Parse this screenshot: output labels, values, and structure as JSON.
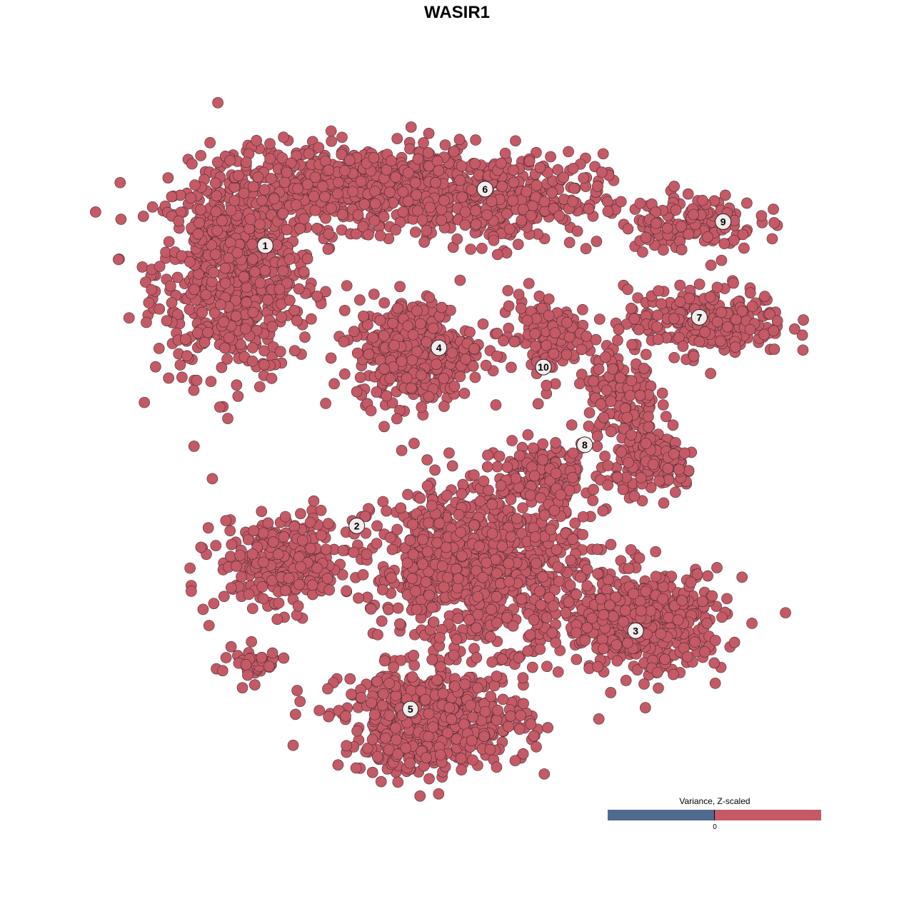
{
  "chart_data": {
    "type": "scatter",
    "title": "WASIR1",
    "xlabel": "",
    "ylabel": "",
    "xlim": [
      -50,
      50
    ],
    "ylim": [
      -50,
      50
    ],
    "grid": false,
    "point_color": "#c45a66",
    "point_stroke": "#4a2a2e",
    "clusters": [
      {
        "label": "1",
        "x": -30.9,
        "y": 31.3
      },
      {
        "label": "2",
        "x": -17.4,
        "y": -10.9
      },
      {
        "label": "3",
        "x": 23.7,
        "y": -26.7
      },
      {
        "label": "4",
        "x": -5.3,
        "y": 15.9
      },
      {
        "label": "5",
        "x": -9.5,
        "y": -38.5
      },
      {
        "label": "6",
        "x": 1.5,
        "y": 39.8
      },
      {
        "label": "7",
        "x": 33.1,
        "y": 20.5
      },
      {
        "label": "8",
        "x": 16.2,
        "y": 1.3
      },
      {
        "label": "9",
        "x": 36.6,
        "y": 34.9
      },
      {
        "label": "10",
        "x": 10.1,
        "y": 13.0
      }
    ],
    "point_groups": [
      {
        "cx": -35.3,
        "cy": 27.4,
        "sx": 7.4,
        "sy": 9.7,
        "n": 700
      },
      {
        "cx": -17.4,
        "cy": 40.3,
        "sx": 11.6,
        "sy": 3.8,
        "n": 600
      },
      {
        "cx": 3.7,
        "cy": 38.2,
        "sx": 9.5,
        "sy": 4.3,
        "n": 350
      },
      {
        "cx": -8.9,
        "cy": 15.6,
        "sx": 5.3,
        "sy": 4.8,
        "n": 450
      },
      {
        "cx": 10.0,
        "cy": 17.7,
        "sx": 4.2,
        "sy": 4.3,
        "n": 120
      },
      {
        "cx": 34.2,
        "cy": 19.9,
        "sx": 7.4,
        "sy": 3.2,
        "n": 250
      },
      {
        "cx": 31.6,
        "cy": 34.9,
        "sx": 6.3,
        "sy": 2.7,
        "n": 130
      },
      {
        "cx": 21.6,
        "cy": 8.1,
        "sx": 3.2,
        "sy": 5.4,
        "n": 150
      },
      {
        "cx": 26.8,
        "cy": -1.6,
        "sx": 3.7,
        "sy": 2.7,
        "n": 150
      },
      {
        "cx": 10.0,
        "cy": -2.7,
        "sx": 5.3,
        "sy": 2.7,
        "n": 150
      },
      {
        "cx": -27.9,
        "cy": -16.7,
        "sx": 6.3,
        "sy": 4.3,
        "n": 300
      },
      {
        "cx": -33.2,
        "cy": -31.7,
        "sx": 3.2,
        "sy": 1.6,
        "n": 40
      },
      {
        "cx": 0.5,
        "cy": -16.7,
        "sx": 9.5,
        "sy": 7.5,
        "n": 900
      },
      {
        "cx": 24.7,
        "cy": -25.3,
        "sx": 7.4,
        "sy": 4.8,
        "n": 500
      },
      {
        "cx": -5.8,
        "cy": -40.3,
        "sx": 8.4,
        "sy": 4.8,
        "n": 600
      }
    ],
    "legend": {
      "title": "Variance, Z-scaled",
      "tick_label": "0",
      "low_color": "#50698f",
      "high_color": "#c45a66",
      "placement": "bottom-right"
    }
  }
}
